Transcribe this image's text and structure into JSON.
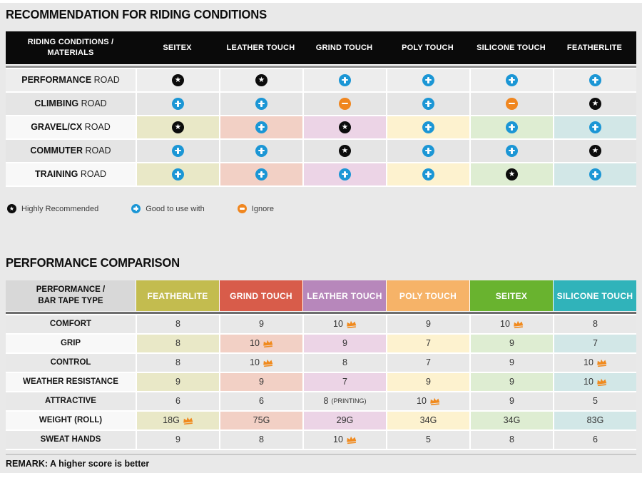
{
  "chart_data": [
    {
      "type": "table",
      "title": "RECOMMENDATION FOR RIDING CONDITIONS",
      "corner_lines": [
        "RIDING CONDITIONS /",
        "MATERIALS"
      ],
      "columns": [
        "SEITEX",
        "LEATHER TOUCH",
        "GRIND TOUCH",
        "POLY TOUCH",
        "SILICONE TOUCH",
        "FEATHERLITE"
      ],
      "rows": [
        {
          "bold": "PERFORMANCE",
          "rest": "ROAD",
          "tinted": false,
          "cells": [
            "star",
            "star",
            "plus",
            "plus",
            "plus",
            "plus"
          ]
        },
        {
          "bold": "CLIMBING",
          "rest": "ROAD",
          "tinted": false,
          "cells": [
            "plus",
            "plus",
            "minus",
            "plus",
            "minus",
            "star"
          ]
        },
        {
          "bold": "GRAVEL/CX",
          "rest": "ROAD",
          "tinted": true,
          "cells": [
            "star",
            "plus",
            "star",
            "plus",
            "plus",
            "plus"
          ]
        },
        {
          "bold": "COMMUTER",
          "rest": "ROAD",
          "tinted": false,
          "cells": [
            "plus",
            "plus",
            "star",
            "plus",
            "plus",
            "star"
          ]
        },
        {
          "bold": "TRAINING",
          "rest": "ROAD",
          "tinted": true,
          "cells": [
            "plus",
            "plus",
            "plus",
            "plus",
            "star",
            "plus"
          ]
        }
      ]
    },
    {
      "type": "table",
      "title": "PERFORMANCE COMPARISON",
      "corner_lines": [
        "PERFORMANCE /",
        "BAR TAPE TYPE"
      ],
      "columns": [
        {
          "label": "FEATHERLITE",
          "color": "#c3bc4f"
        },
        {
          "label": "GRIND TOUCH",
          "color": "#d85c4a"
        },
        {
          "label": "LEATHER TOUCH",
          "color": "#b787bb"
        },
        {
          "label": "POLY TOUCH",
          "color": "#f6b368"
        },
        {
          "label": "SEITEX",
          "color": "#69b32f"
        },
        {
          "label": "SILICONE TOUCH",
          "color": "#30b3ba"
        }
      ],
      "rows": [
        {
          "label": "COMFORT",
          "tinted": false,
          "cells": [
            {
              "v": "8"
            },
            {
              "v": "9"
            },
            {
              "v": "10",
              "crown": true
            },
            {
              "v": "9"
            },
            {
              "v": "10",
              "crown": true
            },
            {
              "v": "8"
            }
          ]
        },
        {
          "label": "GRIP",
          "tinted": true,
          "cells": [
            {
              "v": "8"
            },
            {
              "v": "10",
              "crown": true
            },
            {
              "v": "9"
            },
            {
              "v": "7"
            },
            {
              "v": "9"
            },
            {
              "v": "7"
            }
          ]
        },
        {
          "label": "CONTROL",
          "tinted": false,
          "cells": [
            {
              "v": "8"
            },
            {
              "v": "10",
              "crown": true
            },
            {
              "v": "8"
            },
            {
              "v": "7"
            },
            {
              "v": "9"
            },
            {
              "v": "10",
              "crown": true
            }
          ]
        },
        {
          "label": "WEATHER RESISTANCE",
          "tinted": true,
          "cells": [
            {
              "v": "9"
            },
            {
              "v": "9"
            },
            {
              "v": "7"
            },
            {
              "v": "9"
            },
            {
              "v": "9"
            },
            {
              "v": "10",
              "crown": true
            }
          ]
        },
        {
          "label": "ATTRACTIVE",
          "tinted": false,
          "cells": [
            {
              "v": "6"
            },
            {
              "v": "6"
            },
            {
              "v": "8",
              "suffix": "(PRINTING)"
            },
            {
              "v": "10",
              "crown": true
            },
            {
              "v": "9"
            },
            {
              "v": "5"
            }
          ]
        },
        {
          "label": "WEIGHT (ROLL)",
          "tinted": true,
          "cells": [
            {
              "v": "18G",
              "crown": true
            },
            {
              "v": "75G"
            },
            {
              "v": "29G"
            },
            {
              "v": "34G"
            },
            {
              "v": "34G"
            },
            {
              "v": "83G"
            }
          ]
        },
        {
          "label": "SWEAT HANDS",
          "tinted": false,
          "cells": [
            {
              "v": "9"
            },
            {
              "v": "8"
            },
            {
              "v": "10",
              "crown": true
            },
            {
              "v": "5"
            },
            {
              "v": "8"
            },
            {
              "v": "6"
            }
          ]
        }
      ],
      "remark": "REMARK: A higher score is better"
    }
  ],
  "legend": {
    "items": [
      {
        "icon": "star",
        "label": "Highly Recommended"
      },
      {
        "icon": "plus",
        "label": "Good to use with"
      },
      {
        "icon": "minus",
        "label": "Ignore"
      }
    ]
  },
  "colors": {
    "icon_star_bg": "#0c0c0c",
    "icon_plus_bg": "#1b96d5",
    "icon_minus_bg": "#f0861f",
    "crown": "#f08a1e",
    "header_black": "#0a0a0a",
    "corner_gray": "#d8d8d8",
    "column_tints": [
      "#e9e8c7",
      "#f2d0c5",
      "#ecd4e6",
      "#fdf2cf",
      "#deedd2",
      "#d2e7e7"
    ],
    "tinted_label_bg": "#f8f8f8"
  }
}
